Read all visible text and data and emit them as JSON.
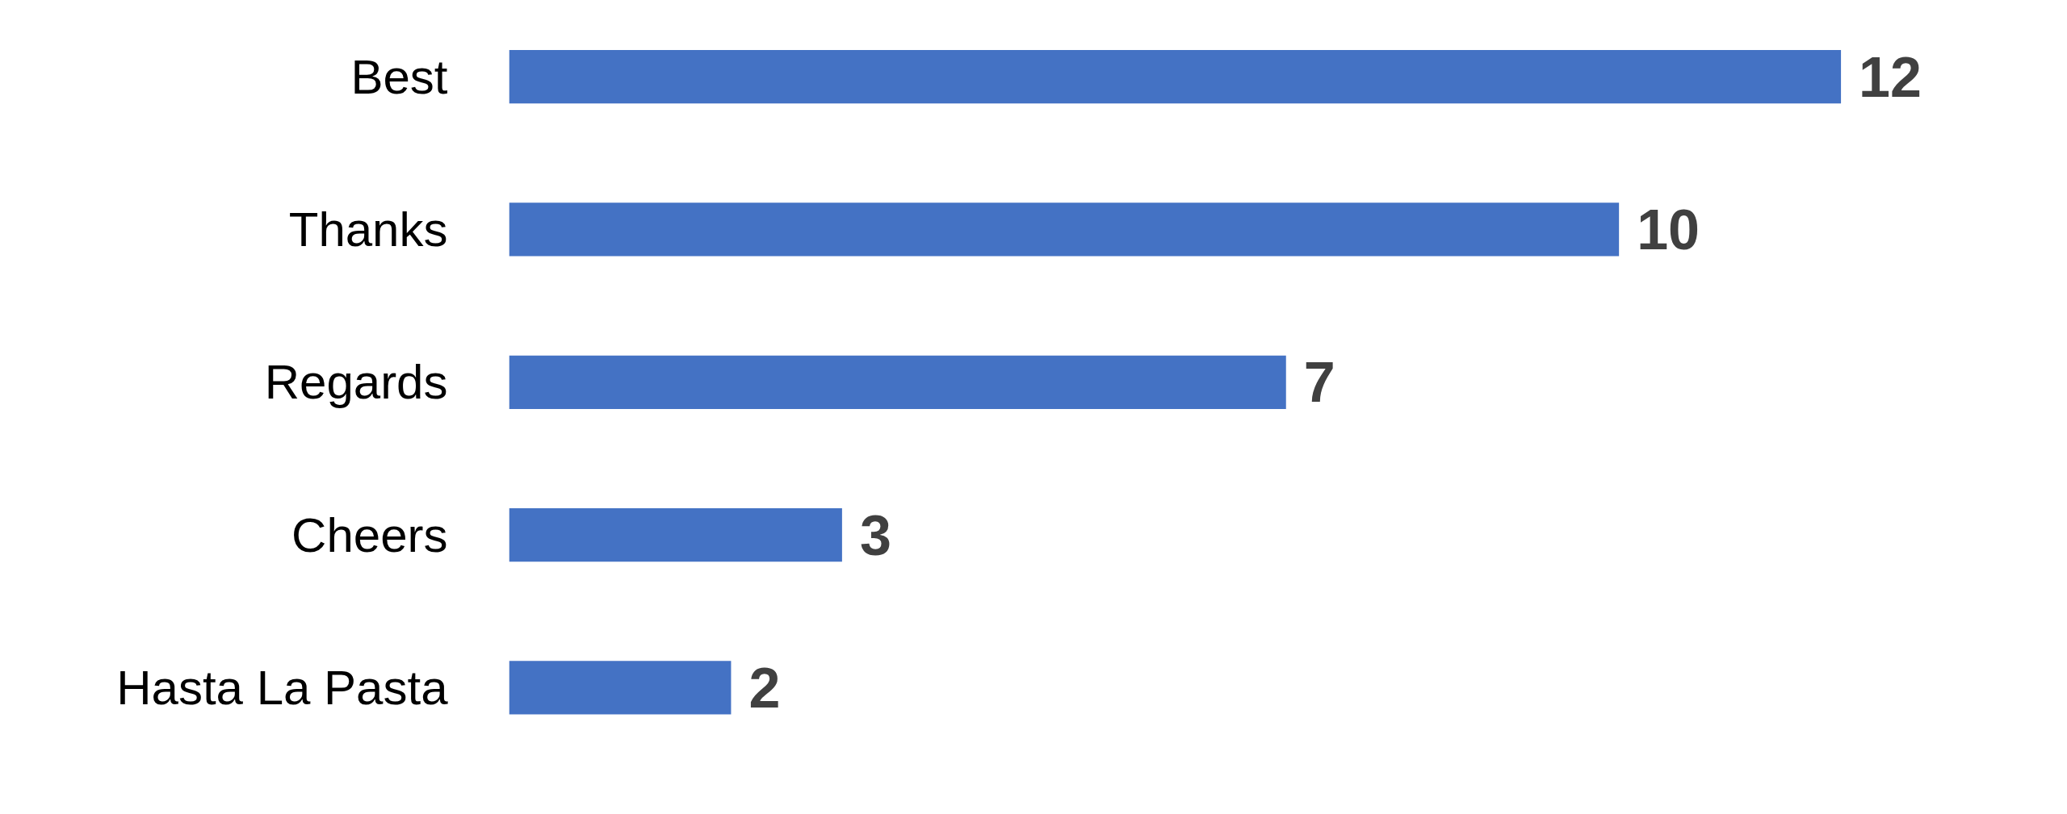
{
  "chart_data": {
    "type": "bar",
    "orientation": "horizontal",
    "categories": [
      "Best",
      "Thanks",
      "Regards",
      "Cheers",
      "Hasta La Pasta"
    ],
    "values": [
      12,
      10,
      7,
      3,
      2
    ],
    "color": "#4472c4",
    "data_labels": true,
    "grid": false
  }
}
